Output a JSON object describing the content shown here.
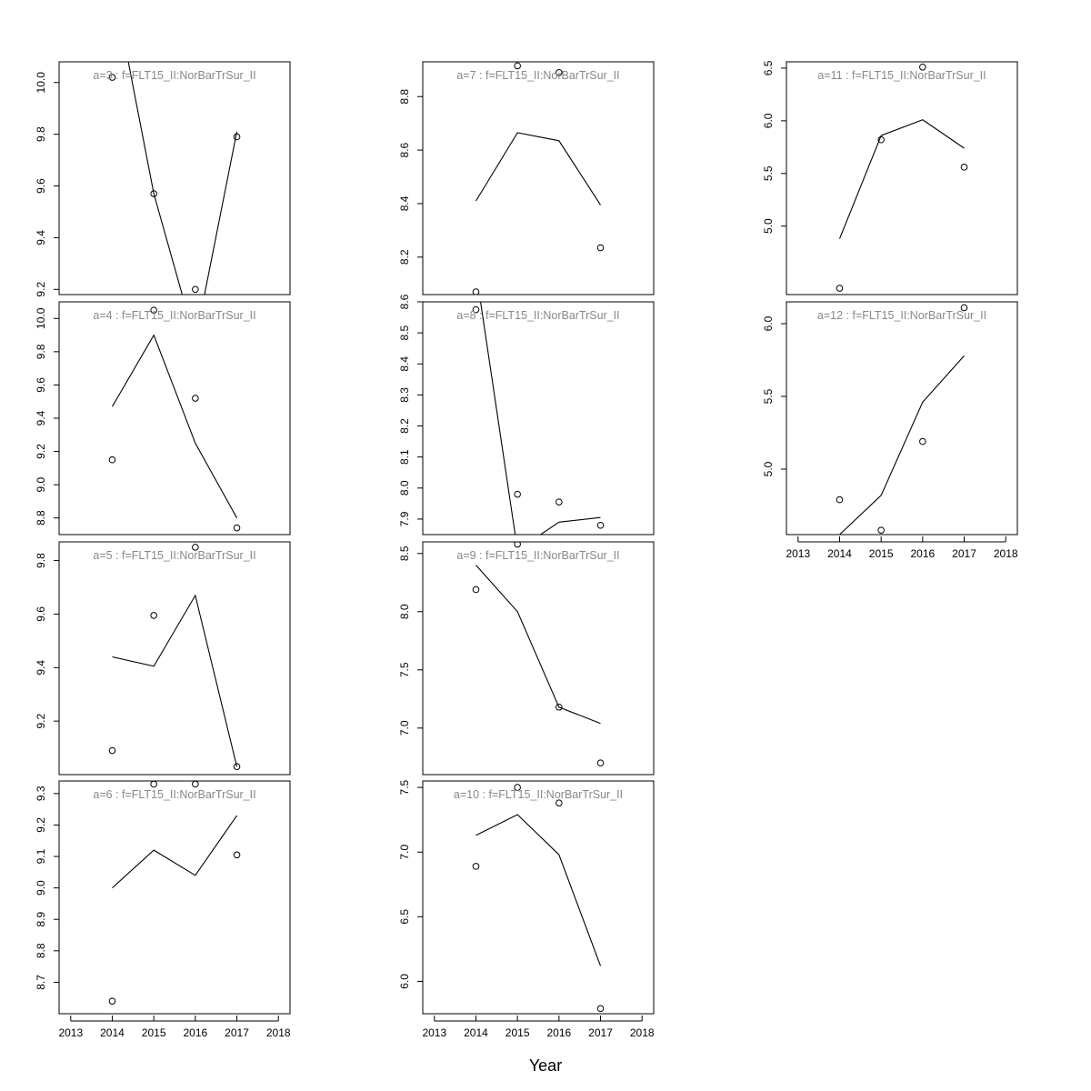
{
  "colors": {
    "line": "#000000",
    "point": "#000000",
    "label": "#888888",
    "frame": "#000000"
  },
  "chart_data": {
    "type": "line",
    "xlabel": "Year",
    "x_axis_ticks": [
      2013,
      2014,
      2015,
      2016,
      2017,
      2018
    ],
    "panels": [
      {
        "label": "a=3  :  f=FLT15_II:NorBarTrSur_II",
        "x": [
          2014,
          2015,
          2016,
          2017
        ],
        "line": [
          10.4,
          9.57,
          9.0,
          9.81
        ],
        "points": [
          10.02,
          9.57,
          9.2,
          9.79
        ],
        "ylim": [
          9.18,
          10.08
        ],
        "yticks": [
          9.2,
          9.4,
          9.6,
          9.8,
          10.0
        ],
        "yfmt": 1,
        "show_x_axis": false
      },
      {
        "label": "a=4  :  f=FLT15_II:NorBarTrSur_II",
        "x": [
          2014,
          2015,
          2016,
          2017
        ],
        "line": [
          9.47,
          9.9,
          9.25,
          8.8
        ],
        "points": [
          9.15,
          10.05,
          9.52,
          8.74
        ],
        "ylim": [
          8.7,
          10.1
        ],
        "yticks": [
          8.8,
          9.0,
          9.2,
          9.4,
          9.6,
          9.8,
          10.0
        ],
        "yfmt": 1,
        "show_x_axis": false
      },
      {
        "label": "a=5  :  f=FLT15_II:NorBarTrSur_II",
        "x": [
          2014,
          2015,
          2016,
          2017
        ],
        "line": [
          9.44,
          9.405,
          9.67,
          9.03
        ],
        "points": [
          9.09,
          9.595,
          9.85,
          9.03
        ],
        "ylim": [
          9.0,
          9.87
        ],
        "yticks": [
          9.2,
          9.4,
          9.6,
          9.8
        ],
        "yfmt": 1,
        "show_x_axis": false
      },
      {
        "label": "a=6  :  f=FLT15_II:NorBarTrSur_II",
        "x": [
          2014,
          2015,
          2016,
          2017
        ],
        "line": [
          9.0,
          9.12,
          9.04,
          9.23
        ],
        "points": [
          8.64,
          9.33,
          9.33,
          9.105
        ],
        "ylim": [
          8.6,
          9.34
        ],
        "yticks": [
          8.7,
          8.8,
          8.9,
          9.0,
          9.1,
          9.2,
          9.3
        ],
        "yfmt": 1,
        "show_x_axis": true
      },
      {
        "label": "a=7  :  f=FLT15_II:NorBarTrSur_II",
        "x": [
          2014,
          2015,
          2016,
          2017
        ],
        "line": [
          8.41,
          8.665,
          8.635,
          8.395
        ],
        "points": [
          8.07,
          8.915,
          8.89,
          8.235
        ],
        "ylim": [
          8.06,
          8.93
        ],
        "yticks": [
          8.2,
          8.4,
          8.6,
          8.8
        ],
        "yfmt": 1,
        "show_x_axis": false
      },
      {
        "label": "a=8  :  f=FLT15_II:NorBarTrSur_II",
        "x": [
          2014,
          2015,
          2016,
          2017
        ],
        "line": [
          8.7,
          7.8,
          7.89,
          7.905
        ],
        "points": [
          8.575,
          7.98,
          7.955,
          7.88
        ],
        "ylim": [
          7.85,
          8.6
        ],
        "yticks": [
          7.9,
          8.0,
          8.1,
          8.2,
          8.3,
          8.4,
          8.5,
          8.6
        ],
        "yfmt": 1,
        "show_x_axis": false
      },
      {
        "label": "a=9  :  f=FLT15_II:NorBarTrSur_II",
        "x": [
          2014,
          2015,
          2016,
          2017
        ],
        "line": [
          8.4,
          8.0,
          7.18,
          7.04
        ],
        "points": [
          8.19,
          8.58,
          7.18,
          6.7
        ],
        "ylim": [
          6.6,
          8.6
        ],
        "yticks": [
          7.0,
          7.5,
          8.0,
          8.5
        ],
        "yfmt": 1,
        "show_x_axis": false
      },
      {
        "label": "a=10  :  f=FLT15_II:NorBarTrSur_II",
        "x": [
          2014,
          2015,
          2016,
          2017
        ],
        "line": [
          7.13,
          7.29,
          6.98,
          6.12
        ],
        "points": [
          6.89,
          7.5,
          7.38,
          5.79
        ],
        "ylim": [
          5.75,
          7.55
        ],
        "yticks": [
          6.0,
          6.5,
          7.0,
          7.5
        ],
        "yfmt": 1,
        "show_x_axis": true
      },
      {
        "label": "a=11  :  f=FLT15_II:NorBarTrSur_II",
        "x": [
          2014,
          2015,
          2016,
          2017
        ],
        "line": [
          4.88,
          5.86,
          6.01,
          5.74
        ],
        "points": [
          4.41,
          5.82,
          6.51,
          5.56
        ],
        "ylim": [
          4.35,
          6.56
        ],
        "yticks": [
          5.0,
          5.5,
          6.0,
          6.5
        ],
        "yfmt": 1,
        "show_x_axis": false
      },
      {
        "label": "a=12  :  f=FLT15_II:NorBarTrSur_II",
        "x": [
          2014,
          2015,
          2016,
          2017
        ],
        "line": [
          4.55,
          4.82,
          5.46,
          5.78
        ],
        "points": [
          4.79,
          4.58,
          5.19,
          6.11
        ],
        "ylim": [
          4.55,
          6.15
        ],
        "yticks": [
          5.0,
          5.5,
          6.0
        ],
        "yfmt": 1,
        "show_x_axis": true
      }
    ]
  }
}
